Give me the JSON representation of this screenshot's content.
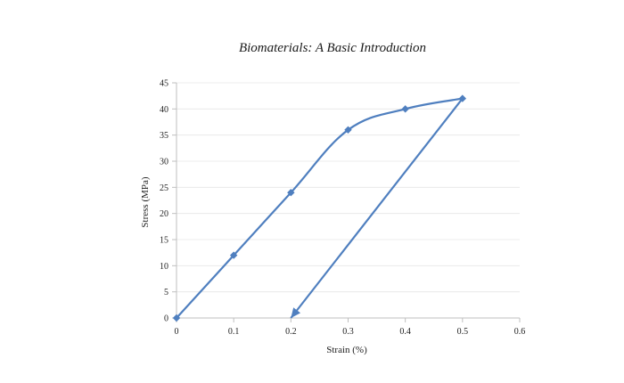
{
  "header": {
    "title": "Biomaterials: A Basic Introduction"
  },
  "chart_data": {
    "type": "line",
    "title": "",
    "xlabel": "Strain (%)",
    "ylabel": "Stress (MPa)",
    "xlim": [
      0,
      0.6
    ],
    "ylim": [
      0,
      45
    ],
    "x_ticks": [
      0,
      0.1,
      0.2,
      0.3,
      0.4,
      0.5,
      0.6
    ],
    "x_tick_labels": [
      "0",
      "0.1",
      "0.2",
      "0.3",
      "0.4",
      "0.5",
      "0.6"
    ],
    "y_ticks": [
      0,
      5,
      10,
      15,
      20,
      25,
      30,
      35,
      40,
      45
    ],
    "y_tick_labels": [
      "0",
      "5",
      "10",
      "15",
      "20",
      "25",
      "30",
      "35",
      "40",
      "45"
    ],
    "grid": true,
    "legend": "none",
    "series": [
      {
        "color": "#4f7fbf",
        "loading_points": [
          {
            "x": 0,
            "y": 0
          },
          {
            "x": 0.1,
            "y": 12
          },
          {
            "x": 0.2,
            "y": 24
          },
          {
            "x": 0.3,
            "y": 36
          },
          {
            "x": 0.4,
            "y": 40
          },
          {
            "x": 0.5,
            "y": 42
          }
        ],
        "unloading_line": [
          {
            "x": 0.5,
            "y": 42
          },
          {
            "x": 0.2,
            "y": 0
          }
        ],
        "marker": "diamond",
        "end_marker": "arrow"
      }
    ]
  }
}
